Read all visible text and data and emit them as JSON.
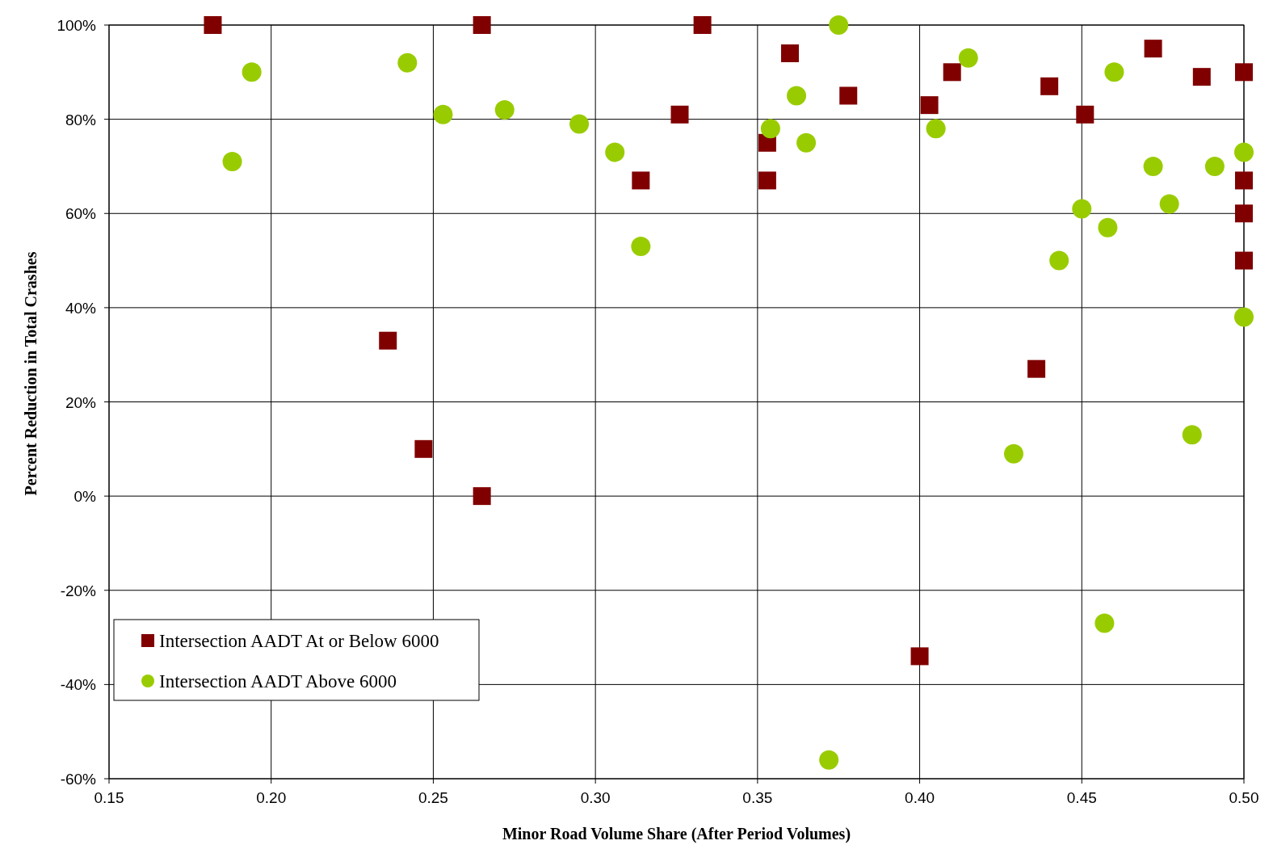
{
  "chart_data": {
    "type": "scatter",
    "xlabel": "Minor Road Volume Share (After Period Volumes)",
    "ylabel": "Percent Reduction in Total Crashes",
    "xlim": [
      0.15,
      0.5
    ],
    "ylim": [
      -60,
      100
    ],
    "xticks": [
      {
        "value": 0.15,
        "label": "0.15"
      },
      {
        "value": 0.2,
        "label": "0.20"
      },
      {
        "value": 0.25,
        "label": "0.25"
      },
      {
        "value": 0.3,
        "label": "0.30"
      },
      {
        "value": 0.35,
        "label": "0.35"
      },
      {
        "value": 0.4,
        "label": "0.40"
      },
      {
        "value": 0.45,
        "label": "0.45"
      },
      {
        "value": 0.5,
        "label": "0.50"
      }
    ],
    "yticks": [
      {
        "value": -60,
        "label": "-60%"
      },
      {
        "value": -40,
        "label": "-40%"
      },
      {
        "value": -20,
        "label": "-20%"
      },
      {
        "value": 0,
        "label": "0%"
      },
      {
        "value": 20,
        "label": "20%"
      },
      {
        "value": 40,
        "label": "40%"
      },
      {
        "value": 60,
        "label": "60%"
      },
      {
        "value": 80,
        "label": "80%"
      },
      {
        "value": 100,
        "label": "100%"
      }
    ],
    "grid": true,
    "legend": "bottom left",
    "series": [
      {
        "name": "Intersection AADT At or Below 6000",
        "color": "#800000",
        "marker": "square",
        "x": [
          0.182,
          0.265,
          0.333,
          0.36,
          0.326,
          0.378,
          0.314,
          0.353,
          0.353,
          0.403,
          0.41,
          0.44,
          0.451,
          0.472,
          0.487,
          0.5,
          0.5,
          0.5,
          0.5,
          0.236,
          0.247,
          0.265,
          0.436,
          0.4
        ],
        "values": [
          100,
          100,
          100,
          94,
          81,
          85,
          67,
          75,
          67,
          83,
          90,
          87,
          81,
          95,
          89,
          90,
          67,
          60,
          50,
          33,
          10,
          0,
          27,
          -34
        ]
      },
      {
        "name": "Intersection AADT Above 6000",
        "color": "#99cc00",
        "marker": "circle",
        "x": [
          0.194,
          0.188,
          0.242,
          0.253,
          0.272,
          0.295,
          0.306,
          0.314,
          0.354,
          0.362,
          0.365,
          0.375,
          0.405,
          0.415,
          0.46,
          0.472,
          0.477,
          0.491,
          0.5,
          0.45,
          0.458,
          0.443,
          0.5,
          0.429,
          0.484,
          0.457,
          0.372
        ],
        "values": [
          90,
          71,
          92,
          81,
          82,
          79,
          73,
          53,
          78,
          85,
          75,
          100,
          78,
          93,
          90,
          70,
          62,
          70,
          73,
          61,
          57,
          50,
          38,
          9,
          13,
          -27,
          -56
        ]
      }
    ]
  }
}
